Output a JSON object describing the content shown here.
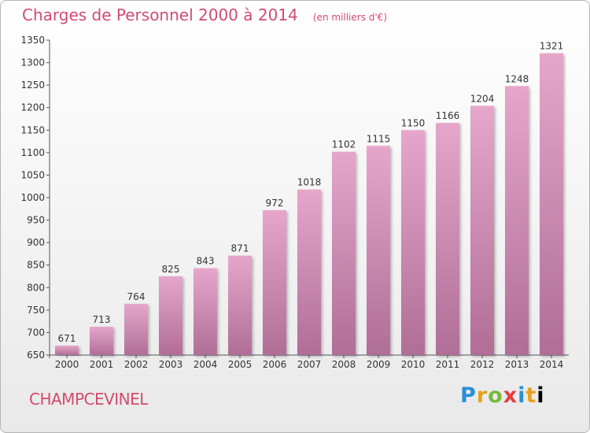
{
  "header": {
    "title": "Charges de Personnel 2000 à 2014",
    "subtitle": "(en milliers d'€)"
  },
  "footer": {
    "commune": "CHAMPCEVINEL",
    "logo": "Proxiti",
    "logo_letters": [
      "P",
      "r",
      "o",
      "x",
      "i",
      "t",
      "i"
    ]
  },
  "chart_data": {
    "type": "bar",
    "title": "Charges de Personnel 2000 à 2014",
    "subtitle": "(en milliers d'€)",
    "xlabel": "",
    "ylabel": "",
    "categories": [
      "2000",
      "2001",
      "2002",
      "2003",
      "2004",
      "2005",
      "2006",
      "2007",
      "2008",
      "2009",
      "2010",
      "2011",
      "2012",
      "2013",
      "2014"
    ],
    "values": [
      671,
      713,
      764,
      825,
      843,
      871,
      972,
      1018,
      1102,
      1115,
      1150,
      1166,
      1204,
      1248,
      1321
    ],
    "ylim": [
      650,
      1350
    ],
    "yticks": [
      650,
      700,
      750,
      800,
      850,
      900,
      950,
      1000,
      1050,
      1100,
      1150,
      1200,
      1250,
      1300,
      1350
    ],
    "grid": false,
    "legend": "none",
    "bar_color_top": "#e6a6cb",
    "bar_color_bottom": "#b06e96"
  }
}
